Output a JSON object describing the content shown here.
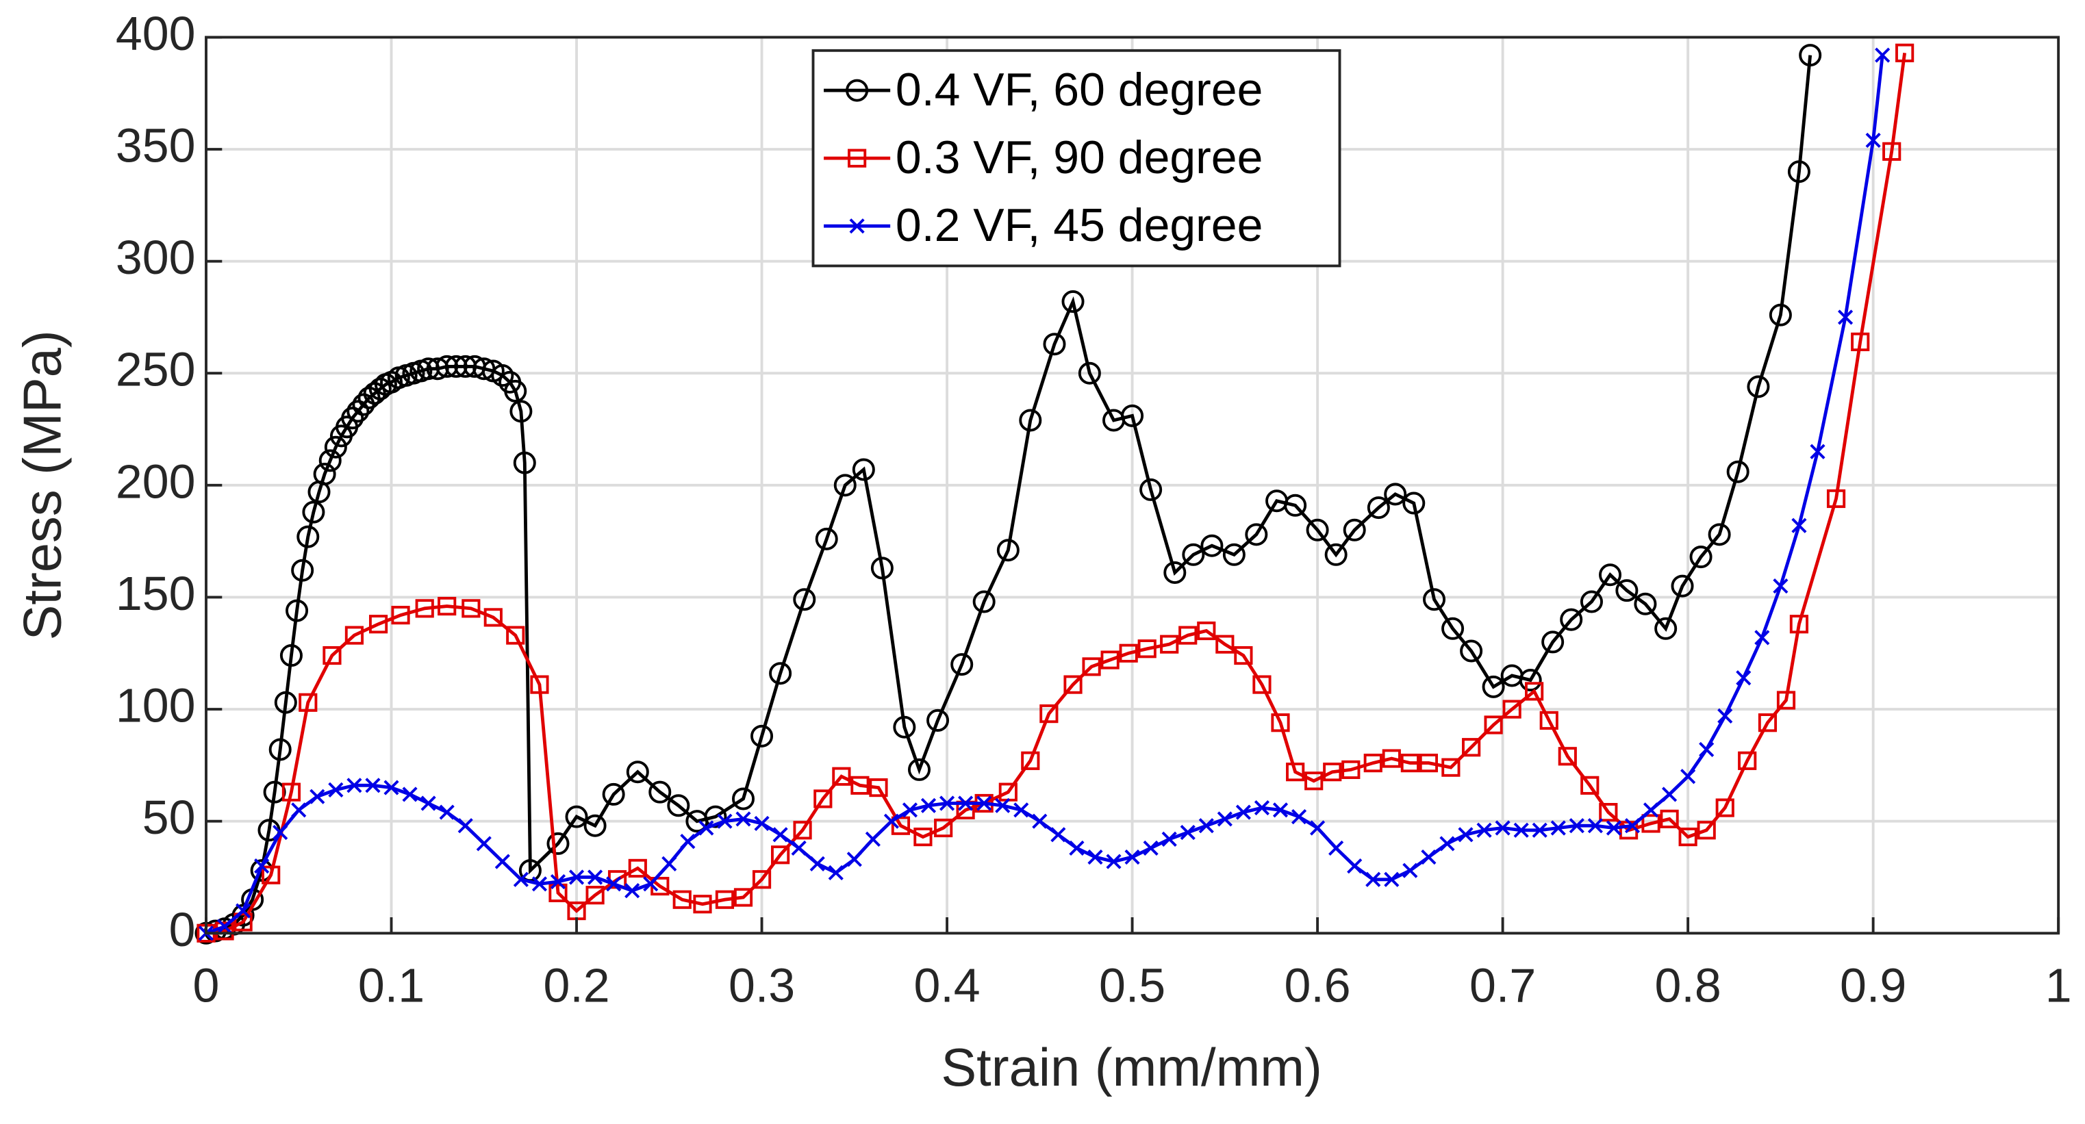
{
  "chart_data": {
    "type": "line",
    "xlabel": "Strain (mm/mm)",
    "ylabel": "Stress (MPa)",
    "xlim": [
      0,
      1
    ],
    "ylim": [
      0,
      400
    ],
    "xticks": [
      0,
      0.1,
      0.2,
      0.3,
      0.4,
      0.5,
      0.6,
      0.7,
      0.8,
      0.9,
      1
    ],
    "yticks": [
      0,
      50,
      100,
      150,
      200,
      250,
      300,
      350,
      400
    ],
    "grid": true,
    "legend": "north",
    "series": [
      {
        "name": "0.4 VF, 60 degree",
        "color": "#000000",
        "marker": "circle",
        "x": [
          0,
          0.005,
          0.01,
          0.015,
          0.02,
          0.025,
          0.03,
          0.034,
          0.037,
          0.04,
          0.043,
          0.046,
          0.049,
          0.052,
          0.055,
          0.058,
          0.061,
          0.064,
          0.067,
          0.07,
          0.073,
          0.076,
          0.079,
          0.082,
          0.085,
          0.088,
          0.091,
          0.094,
          0.097,
          0.1,
          0.104,
          0.108,
          0.112,
          0.116,
          0.12,
          0.125,
          0.13,
          0.135,
          0.14,
          0.145,
          0.15,
          0.155,
          0.16,
          0.164,
          0.167,
          0.17,
          0.172,
          0.175,
          0.19,
          0.2,
          0.21,
          0.22,
          0.233,
          0.245,
          0.255,
          0.265,
          0.275,
          0.29,
          0.3,
          0.31,
          0.323,
          0.335,
          0.345,
          0.355,
          0.365,
          0.377,
          0.385,
          0.395,
          0.408,
          0.42,
          0.433,
          0.445,
          0.458,
          0.468,
          0.477,
          0.49,
          0.5,
          0.51,
          0.523,
          0.533,
          0.543,
          0.555,
          0.567,
          0.578,
          0.588,
          0.6,
          0.61,
          0.62,
          0.633,
          0.642,
          0.652,
          0.663,
          0.673,
          0.683,
          0.695,
          0.705,
          0.715,
          0.727,
          0.737,
          0.748,
          0.758,
          0.767,
          0.777,
          0.788,
          0.797,
          0.807,
          0.817,
          0.827,
          0.838,
          0.85,
          0.86,
          0.866
        ],
        "values": [
          0,
          1,
          2,
          4,
          8,
          15,
          28,
          46,
          63,
          82,
          103,
          124,
          144,
          162,
          177,
          188,
          197,
          205,
          211,
          217,
          222,
          226,
          230,
          233,
          236,
          239,
          241,
          243,
          245,
          246,
          248,
          249,
          250,
          251,
          252,
          252,
          253,
          253,
          253,
          253,
          252,
          251,
          249,
          246,
          242,
          233,
          210,
          28,
          40,
          52,
          48,
          62,
          72,
          63,
          57,
          50,
          52,
          60,
          88,
          116,
          149,
          176,
          200,
          207,
          163,
          92,
          73,
          95,
          120,
          148,
          171,
          229,
          263,
          282,
          250,
          229,
          231,
          198,
          161,
          169,
          173,
          169,
          178,
          193,
          191,
          180,
          169,
          180,
          190,
          196,
          192,
          149,
          136,
          126,
          110,
          115,
          113,
          130,
          140,
          148,
          160,
          153,
          147,
          136,
          155,
          168,
          178,
          206,
          244,
          276,
          340,
          392
        ]
      },
      {
        "name": "0.3 VF, 90 degree",
        "color": "#e00000",
        "marker": "square",
        "x": [
          0,
          0.01,
          0.02,
          0.035,
          0.046,
          0.055,
          0.068,
          0.08,
          0.093,
          0.105,
          0.118,
          0.13,
          0.143,
          0.155,
          0.167,
          0.18,
          0.19,
          0.2,
          0.21,
          0.222,
          0.233,
          0.245,
          0.257,
          0.268,
          0.28,
          0.29,
          0.3,
          0.31,
          0.322,
          0.333,
          0.343,
          0.353,
          0.363,
          0.375,
          0.387,
          0.398,
          0.41,
          0.42,
          0.433,
          0.445,
          0.455,
          0.468,
          0.478,
          0.488,
          0.498,
          0.508,
          0.52,
          0.53,
          0.54,
          0.55,
          0.56,
          0.57,
          0.58,
          0.588,
          0.598,
          0.608,
          0.618,
          0.63,
          0.64,
          0.65,
          0.66,
          0.672,
          0.683,
          0.695,
          0.705,
          0.717,
          0.725,
          0.735,
          0.747,
          0.757,
          0.768,
          0.78,
          0.79,
          0.8,
          0.81,
          0.82,
          0.832,
          0.843,
          0.853,
          0.86,
          0.88,
          0.893,
          0.91,
          0.917
        ],
        "values": [
          0,
          1,
          5,
          26,
          63,
          103,
          124,
          133,
          138,
          142,
          145,
          146,
          145,
          141,
          133,
          111,
          18,
          10,
          17,
          24,
          29,
          21,
          15,
          13,
          15,
          16,
          24,
          35,
          46,
          60,
          70,
          66,
          65,
          48,
          43,
          47,
          55,
          58,
          63,
          77,
          98,
          111,
          119,
          122,
          125,
          127,
          129,
          133,
          135,
          129,
          124,
          111,
          94,
          72,
          68,
          72,
          73,
          76,
          78,
          76,
          76,
          74,
          83,
          93,
          100,
          108,
          95,
          79,
          66,
          54,
          46,
          49,
          51,
          43,
          46,
          56,
          77,
          94,
          104,
          138,
          194,
          264,
          349,
          393
        ]
      },
      {
        "name": "0.2 VF, 45 degree",
        "color": "#0000e6",
        "marker": "x",
        "x": [
          0,
          0.01,
          0.02,
          0.03,
          0.04,
          0.05,
          0.06,
          0.07,
          0.08,
          0.09,
          0.1,
          0.11,
          0.12,
          0.13,
          0.14,
          0.15,
          0.16,
          0.17,
          0.18,
          0.19,
          0.2,
          0.21,
          0.22,
          0.23,
          0.24,
          0.25,
          0.26,
          0.27,
          0.28,
          0.29,
          0.3,
          0.31,
          0.32,
          0.33,
          0.34,
          0.35,
          0.36,
          0.37,
          0.38,
          0.39,
          0.4,
          0.41,
          0.42,
          0.43,
          0.44,
          0.45,
          0.46,
          0.47,
          0.48,
          0.49,
          0.5,
          0.51,
          0.52,
          0.53,
          0.54,
          0.55,
          0.56,
          0.57,
          0.58,
          0.59,
          0.6,
          0.61,
          0.62,
          0.63,
          0.64,
          0.65,
          0.66,
          0.67,
          0.68,
          0.69,
          0.7,
          0.71,
          0.72,
          0.73,
          0.74,
          0.75,
          0.76,
          0.77,
          0.78,
          0.79,
          0.8,
          0.81,
          0.82,
          0.83,
          0.84,
          0.85,
          0.86,
          0.87,
          0.885,
          0.9,
          0.905
        ],
        "values": [
          0,
          3,
          10,
          30,
          45,
          55,
          61,
          64,
          66,
          66,
          65,
          62,
          58,
          54,
          48,
          40,
          32,
          24,
          22,
          23,
          25,
          25,
          22,
          19,
          22,
          31,
          41,
          47,
          50,
          51,
          49,
          44,
          38,
          31,
          27,
          33,
          42,
          50,
          55,
          57,
          58,
          58,
          58,
          57,
          55,
          50,
          44,
          38,
          34,
          32,
          34,
          38,
          42,
          45,
          48,
          51,
          54,
          56,
          55,
          52,
          47,
          38,
          30,
          24,
          24,
          28,
          34,
          40,
          44,
          46,
          47,
          46,
          46,
          47,
          48,
          48,
          47,
          48,
          55,
          62,
          70,
          82,
          97,
          114,
          132,
          155,
          182,
          215,
          275,
          354,
          392
        ]
      }
    ]
  }
}
